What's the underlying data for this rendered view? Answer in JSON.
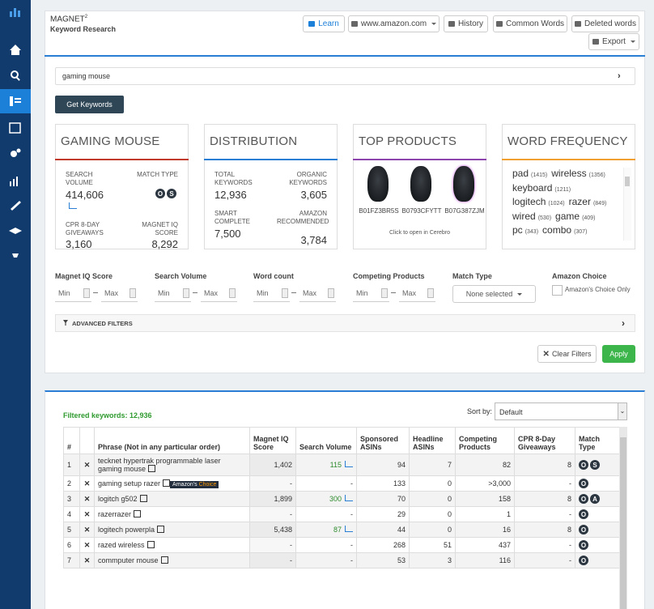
{
  "header": {
    "title": "MAGNET",
    "title_sup": "2",
    "subtitle": "Keyword Research",
    "buttons": [
      "Learn",
      "www.amazon.com",
      "History",
      "Common Words",
      "Deleted words",
      "Export"
    ]
  },
  "search": {
    "query": "gaming mouse",
    "button": "Get Keywords"
  },
  "cards": [
    {
      "title": "GAMING MOUSE",
      "stats": [
        {
          "label": "SEARCH VOLUME",
          "value": "414,606"
        },
        {
          "label": "MATCH TYPE",
          "badges": [
            "O",
            "S"
          ]
        },
        {
          "label": "CPR 8-DAY GIVEAWAYS",
          "value": "3,160"
        },
        {
          "label": "MAGNET IQ SCORE",
          "value": "8,292"
        }
      ]
    },
    {
      "title": "DISTRIBUTION",
      "stats": [
        {
          "label": "TOTAL KEYWORDS",
          "value": "12,936"
        },
        {
          "label": "ORGANIC KEYWORDS",
          "value": "3,605"
        },
        {
          "label": "SMART COMPLETE",
          "value": "7,500"
        },
        {
          "label": "AMAZON RECOMMENDED",
          "value": "3,784"
        }
      ]
    },
    {
      "title": "TOP PRODUCTS",
      "products": [
        "B01FZ3BR5S",
        "B0793CFYTT",
        "B07G387ZJM"
      ],
      "note": "Click to open in Cerebro"
    },
    {
      "title": "WORD FREQUENCY",
      "lines": [
        [
          {
            "word": "pad",
            "count": "(1415)"
          },
          {
            "word": "wireless",
            "count": "(1356)"
          }
        ],
        [
          {
            "word": "keyboard",
            "count": "(1211)"
          }
        ],
        [
          {
            "word": "logitech",
            "count": "(1024)"
          },
          {
            "word": "razer",
            "count": "(849)"
          }
        ],
        [
          {
            "word": "wired",
            "count": "(530)"
          },
          {
            "word": "game",
            "count": "(409)"
          }
        ],
        [
          {
            "word": "pc",
            "count": "(343)"
          },
          {
            "word": "combo",
            "count": "(307)"
          }
        ]
      ]
    }
  ],
  "filters": {
    "groups": [
      {
        "label": "Magnet IQ Score",
        "min": "Min",
        "max": "Max"
      },
      {
        "label": "Search Volume",
        "min": "Min",
        "max": "Max"
      },
      {
        "label": "Word count",
        "min": "Min",
        "max": "Max"
      },
      {
        "label": "Competing Products",
        "min": "Min",
        "max": "Max"
      }
    ],
    "match_type": {
      "label": "Match Type",
      "value": "None selected"
    },
    "amazon_choice": {
      "label": "Amazon Choice",
      "option": "Amazon's Choice Only"
    },
    "advanced": "ADVANCED FILTERS",
    "clear": "Clear Filters",
    "apply": "Apply"
  },
  "results": {
    "filtered": "Filtered keywords: 12,936",
    "sort_label": "Sort by:",
    "sort_value": "Default",
    "columns": [
      "#",
      "Phrase (Not in any particular order)",
      "Magnet IQ Score",
      "Search Volume",
      "Sponsored ASINs",
      "Headline ASINs",
      "Competing Products",
      "CPR 8-Day Giveaways",
      "Match Type"
    ],
    "rows": [
      {
        "num": "1",
        "phrase": "tecknet hypertrak programmable laser gaming mouse",
        "iq": "1,402",
        "volume": "115",
        "sponsored": "94",
        "headline": "7",
        "competing": "82",
        "cpr": "8",
        "match": [
          "O",
          "S"
        ]
      },
      {
        "num": "2",
        "phrase": "gaming setup razer",
        "badge": [
          "Amazon's",
          "Choice"
        ],
        "iq": "-",
        "volume": "-",
        "sponsored": "133",
        "headline": "0",
        "competing": ">3,000",
        "cpr": "-",
        "match": [
          "O"
        ]
      },
      {
        "num": "3",
        "phrase": "logitch g502",
        "iq": "1,899",
        "volume": "300",
        "sponsored": "70",
        "headline": "0",
        "competing": "158",
        "cpr": "8",
        "match": [
          "O",
          "A"
        ]
      },
      {
        "num": "4",
        "phrase": "razerrazer",
        "iq": "-",
        "volume": "-",
        "sponsored": "29",
        "headline": "0",
        "competing": "1",
        "cpr": "-",
        "match": [
          "O"
        ]
      },
      {
        "num": "5",
        "phrase": "logitech powerpla",
        "iq": "5,438",
        "volume": "87",
        "sponsored": "44",
        "headline": "0",
        "competing": "16",
        "cpr": "8",
        "match": [
          "O"
        ]
      },
      {
        "num": "6",
        "phrase": "razed wireless",
        "iq": "-",
        "volume": "-",
        "sponsored": "268",
        "headline": "51",
        "competing": "437",
        "cpr": "-",
        "match": [
          "O"
        ]
      },
      {
        "num": "7",
        "phrase": "commputer mouse",
        "iq": "-",
        "volume": "-",
        "sponsored": "53",
        "headline": "3",
        "competing": "116",
        "cpr": "-",
        "match": [
          "O"
        ]
      }
    ]
  }
}
